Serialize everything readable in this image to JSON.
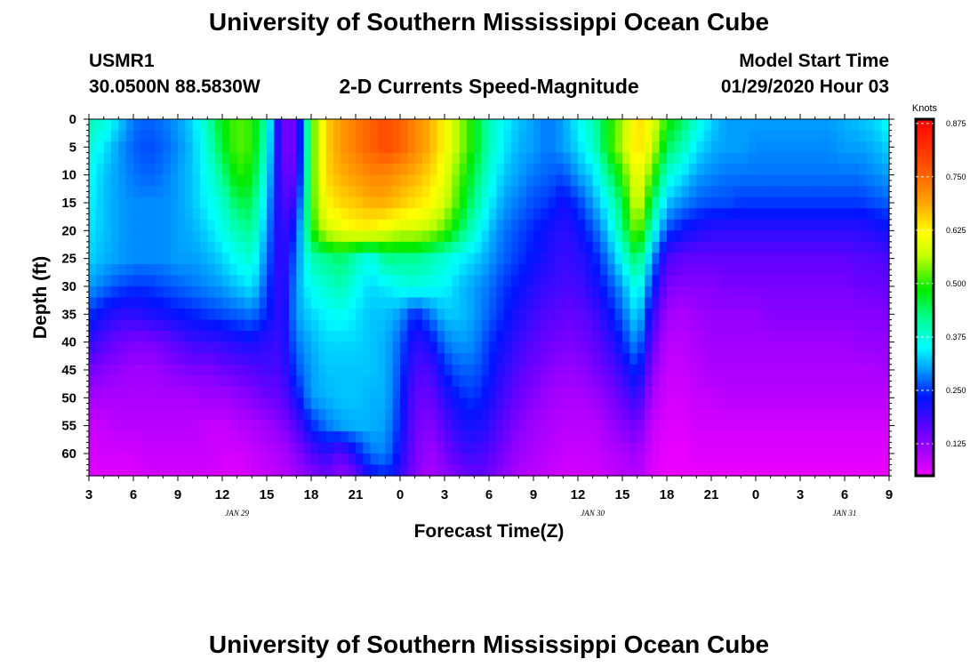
{
  "header": {
    "title": "University of Southern Mississippi Ocean Cube",
    "station": "USMR1",
    "coords": "30.0500N 88.5830W",
    "subtitle": "2-D Currents Speed-Magnitude",
    "model_label": "Model Start Time",
    "model_time": "01/29/2020 Hour 03"
  },
  "footer": {
    "title": "University of Southern Mississippi Ocean Cube"
  },
  "chart_data": {
    "type": "heatmap",
    "title": "2-D Currents Speed-Magnitude",
    "xlabel": "Forecast Time(Z)",
    "ylabel": "Depth (ft)",
    "colorbar_label": "Knots",
    "x_ticks": [
      "3",
      "6",
      "9",
      "12",
      "15",
      "18",
      "21",
      "0",
      "3",
      "6",
      "9",
      "12",
      "15",
      "18",
      "21",
      "0",
      "3",
      "6",
      "9"
    ],
    "date_labels": [
      {
        "text": "JAN 29",
        "x_hours": 13
      },
      {
        "text": "JAN 30",
        "x_hours": 37
      },
      {
        "text": "JAN 31",
        "x_hours": 54
      }
    ],
    "y_ticks": [
      0,
      5,
      10,
      15,
      20,
      25,
      30,
      35,
      40,
      45,
      50,
      55,
      60
    ],
    "x_range_hours": [
      3,
      57
    ],
    "depth_range_ft": [
      0,
      64
    ],
    "colorbar_ticks": [
      "0.875",
      "0.750",
      "0.625",
      "0.500",
      "0.375",
      "0.250",
      "0.125"
    ],
    "colorbar_range": [
      0.05,
      0.885
    ],
    "columns_hours": [
      3,
      4,
      5,
      6,
      7,
      8,
      9,
      10,
      11,
      12,
      13,
      14,
      15,
      16,
      17,
      18,
      19,
      20,
      21,
      22,
      23,
      24,
      25,
      26,
      27,
      28,
      29,
      30,
      31,
      32,
      33,
      34,
      35,
      36,
      37,
      38,
      39,
      40,
      41,
      42,
      43,
      44,
      45,
      46,
      47,
      48,
      49,
      50,
      51,
      52,
      53,
      54,
      55,
      56,
      57
    ],
    "rows_depth_ft": [
      0,
      5,
      10,
      15,
      20,
      25,
      30,
      35,
      40,
      45,
      50,
      55,
      60,
      64
    ],
    "speed_knots": [
      [
        0.4,
        0.38,
        0.33,
        0.28,
        0.27,
        0.28,
        0.3,
        0.33,
        0.4,
        0.48,
        0.52,
        0.5,
        0.4,
        0.15,
        0.15,
        0.5,
        0.65,
        0.7,
        0.73,
        0.76,
        0.78,
        0.76,
        0.72,
        0.68,
        0.62,
        0.55,
        0.48,
        0.4,
        0.35,
        0.32,
        0.3,
        0.28,
        0.3,
        0.35,
        0.4,
        0.48,
        0.55,
        0.65,
        0.6,
        0.5,
        0.45,
        0.38,
        0.33,
        0.3,
        0.3,
        0.3,
        0.3,
        0.3,
        0.3,
        0.3,
        0.3,
        0.31,
        0.32,
        0.33,
        0.36
      ],
      [
        0.38,
        0.34,
        0.3,
        0.27,
        0.26,
        0.27,
        0.29,
        0.32,
        0.38,
        0.46,
        0.52,
        0.5,
        0.38,
        0.15,
        0.15,
        0.5,
        0.65,
        0.7,
        0.73,
        0.76,
        0.78,
        0.76,
        0.72,
        0.68,
        0.62,
        0.55,
        0.48,
        0.4,
        0.34,
        0.31,
        0.3,
        0.28,
        0.3,
        0.33,
        0.38,
        0.48,
        0.56,
        0.65,
        0.58,
        0.45,
        0.4,
        0.34,
        0.31,
        0.3,
        0.3,
        0.29,
        0.29,
        0.29,
        0.29,
        0.29,
        0.29,
        0.3,
        0.3,
        0.31,
        0.33
      ],
      [
        0.36,
        0.32,
        0.3,
        0.28,
        0.27,
        0.28,
        0.3,
        0.32,
        0.36,
        0.42,
        0.5,
        0.48,
        0.35,
        0.16,
        0.16,
        0.5,
        0.65,
        0.68,
        0.7,
        0.72,
        0.72,
        0.7,
        0.68,
        0.65,
        0.6,
        0.52,
        0.45,
        0.38,
        0.32,
        0.3,
        0.28,
        0.27,
        0.26,
        0.3,
        0.33,
        0.42,
        0.5,
        0.62,
        0.52,
        0.38,
        0.34,
        0.3,
        0.29,
        0.28,
        0.28,
        0.28,
        0.28,
        0.28,
        0.28,
        0.28,
        0.28,
        0.28,
        0.28,
        0.29,
        0.3
      ],
      [
        0.35,
        0.32,
        0.3,
        0.29,
        0.29,
        0.29,
        0.3,
        0.32,
        0.35,
        0.38,
        0.45,
        0.45,
        0.32,
        0.17,
        0.2,
        0.5,
        0.62,
        0.65,
        0.66,
        0.68,
        0.68,
        0.66,
        0.64,
        0.62,
        0.58,
        0.5,
        0.42,
        0.35,
        0.3,
        0.28,
        0.26,
        0.25,
        0.22,
        0.25,
        0.3,
        0.36,
        0.45,
        0.6,
        0.45,
        0.32,
        0.29,
        0.27,
        0.26,
        0.26,
        0.25,
        0.25,
        0.25,
        0.25,
        0.25,
        0.25,
        0.25,
        0.25,
        0.25,
        0.26,
        0.27
      ],
      [
        0.34,
        0.32,
        0.3,
        0.29,
        0.29,
        0.29,
        0.3,
        0.31,
        0.33,
        0.36,
        0.4,
        0.42,
        0.3,
        0.18,
        0.25,
        0.48,
        0.58,
        0.6,
        0.62,
        0.62,
        0.6,
        0.58,
        0.58,
        0.56,
        0.52,
        0.45,
        0.38,
        0.32,
        0.28,
        0.26,
        0.24,
        0.22,
        0.2,
        0.22,
        0.26,
        0.32,
        0.42,
        0.55,
        0.38,
        0.26,
        0.23,
        0.21,
        0.2,
        0.2,
        0.2,
        0.2,
        0.2,
        0.2,
        0.2,
        0.2,
        0.2,
        0.2,
        0.2,
        0.21,
        0.22
      ],
      [
        0.33,
        0.31,
        0.3,
        0.29,
        0.29,
        0.29,
        0.3,
        0.3,
        0.31,
        0.33,
        0.36,
        0.38,
        0.28,
        0.18,
        0.28,
        0.4,
        0.42,
        0.44,
        0.4,
        0.36,
        0.42,
        0.42,
        0.42,
        0.4,
        0.38,
        0.35,
        0.33,
        0.3,
        0.27,
        0.25,
        0.23,
        0.21,
        0.19,
        0.2,
        0.23,
        0.28,
        0.36,
        0.45,
        0.3,
        0.18,
        0.16,
        0.16,
        0.16,
        0.16,
        0.16,
        0.16,
        0.16,
        0.16,
        0.16,
        0.16,
        0.16,
        0.16,
        0.17,
        0.17,
        0.18
      ],
      [
        0.3,
        0.28,
        0.26,
        0.25,
        0.25,
        0.26,
        0.27,
        0.28,
        0.29,
        0.3,
        0.32,
        0.34,
        0.26,
        0.18,
        0.3,
        0.36,
        0.38,
        0.4,
        0.36,
        0.33,
        0.34,
        0.36,
        0.37,
        0.36,
        0.35,
        0.32,
        0.3,
        0.28,
        0.25,
        0.23,
        0.21,
        0.19,
        0.18,
        0.18,
        0.21,
        0.25,
        0.3,
        0.38,
        0.25,
        0.14,
        0.13,
        0.13,
        0.13,
        0.14,
        0.14,
        0.14,
        0.14,
        0.14,
        0.14,
        0.14,
        0.14,
        0.14,
        0.15,
        0.15,
        0.16
      ],
      [
        0.25,
        0.22,
        0.2,
        0.2,
        0.21,
        0.22,
        0.23,
        0.24,
        0.25,
        0.26,
        0.27,
        0.28,
        0.24,
        0.19,
        0.3,
        0.33,
        0.35,
        0.36,
        0.34,
        0.32,
        0.32,
        0.3,
        0.24,
        0.28,
        0.32,
        0.32,
        0.3,
        0.27,
        0.24,
        0.21,
        0.19,
        0.17,
        0.16,
        0.16,
        0.18,
        0.22,
        0.27,
        0.34,
        0.2,
        0.11,
        0.1,
        0.11,
        0.12,
        0.12,
        0.12,
        0.12,
        0.13,
        0.13,
        0.13,
        0.13,
        0.13,
        0.13,
        0.13,
        0.13,
        0.14
      ],
      [
        0.2,
        0.17,
        0.15,
        0.14,
        0.14,
        0.15,
        0.17,
        0.19,
        0.19,
        0.2,
        0.21,
        0.22,
        0.2,
        0.19,
        0.28,
        0.31,
        0.33,
        0.33,
        0.33,
        0.32,
        0.31,
        0.27,
        0.2,
        0.22,
        0.28,
        0.3,
        0.29,
        0.25,
        0.22,
        0.19,
        0.17,
        0.15,
        0.14,
        0.14,
        0.16,
        0.19,
        0.24,
        0.3,
        0.16,
        0.09,
        0.09,
        0.1,
        0.11,
        0.11,
        0.11,
        0.11,
        0.11,
        0.11,
        0.11,
        0.11,
        0.11,
        0.11,
        0.12,
        0.12,
        0.12
      ],
      [
        0.15,
        0.13,
        0.12,
        0.11,
        0.11,
        0.12,
        0.13,
        0.14,
        0.14,
        0.15,
        0.16,
        0.17,
        0.18,
        0.18,
        0.26,
        0.3,
        0.32,
        0.32,
        0.32,
        0.32,
        0.31,
        0.26,
        0.18,
        0.18,
        0.24,
        0.27,
        0.27,
        0.24,
        0.2,
        0.17,
        0.15,
        0.13,
        0.12,
        0.12,
        0.14,
        0.16,
        0.2,
        0.25,
        0.13,
        0.08,
        0.08,
        0.09,
        0.1,
        0.1,
        0.1,
        0.1,
        0.1,
        0.1,
        0.1,
        0.1,
        0.1,
        0.1,
        0.1,
        0.1,
        0.11
      ],
      [
        0.11,
        0.1,
        0.1,
        0.1,
        0.1,
        0.1,
        0.1,
        0.1,
        0.11,
        0.11,
        0.12,
        0.13,
        0.15,
        0.16,
        0.22,
        0.3,
        0.31,
        0.32,
        0.32,
        0.31,
        0.31,
        0.25,
        0.16,
        0.15,
        0.2,
        0.24,
        0.25,
        0.22,
        0.18,
        0.15,
        0.13,
        0.11,
        0.1,
        0.1,
        0.11,
        0.13,
        0.16,
        0.2,
        0.1,
        0.07,
        0.07,
        0.08,
        0.08,
        0.09,
        0.09,
        0.09,
        0.09,
        0.09,
        0.09,
        0.09,
        0.09,
        0.09,
        0.09,
        0.09,
        0.09
      ],
      [
        0.08,
        0.08,
        0.09,
        0.09,
        0.09,
        0.09,
        0.09,
        0.09,
        0.08,
        0.08,
        0.09,
        0.1,
        0.11,
        0.13,
        0.17,
        0.24,
        0.28,
        0.3,
        0.31,
        0.31,
        0.3,
        0.24,
        0.15,
        0.13,
        0.17,
        0.21,
        0.22,
        0.2,
        0.16,
        0.13,
        0.11,
        0.1,
        0.09,
        0.09,
        0.09,
        0.11,
        0.13,
        0.15,
        0.08,
        0.06,
        0.06,
        0.07,
        0.07,
        0.07,
        0.07,
        0.07,
        0.07,
        0.07,
        0.07,
        0.07,
        0.07,
        0.07,
        0.07,
        0.07,
        0.07
      ],
      [
        0.07,
        0.07,
        0.07,
        0.07,
        0.08,
        0.08,
        0.08,
        0.08,
        0.08,
        0.07,
        0.07,
        0.08,
        0.09,
        0.1,
        0.13,
        0.17,
        0.2,
        0.16,
        0.22,
        0.28,
        0.29,
        0.22,
        0.14,
        0.11,
        0.14,
        0.18,
        0.19,
        0.17,
        0.14,
        0.11,
        0.1,
        0.09,
        0.08,
        0.08,
        0.08,
        0.09,
        0.1,
        0.11,
        0.07,
        0.05,
        0.05,
        0.06,
        0.06,
        0.06,
        0.06,
        0.06,
        0.06,
        0.06,
        0.06,
        0.06,
        0.06,
        0.06,
        0.06,
        0.06,
        0.06
      ],
      [
        0.06,
        0.06,
        0.06,
        0.06,
        0.07,
        0.07,
        0.07,
        0.07,
        0.07,
        0.06,
        0.06,
        0.07,
        0.08,
        0.09,
        0.11,
        0.13,
        0.15,
        0.12,
        0.15,
        0.22,
        0.24,
        0.2,
        0.13,
        0.1,
        0.12,
        0.14,
        0.16,
        0.15,
        0.12,
        0.1,
        0.09,
        0.08,
        0.07,
        0.07,
        0.07,
        0.08,
        0.09,
        0.1,
        0.06,
        0.05,
        0.05,
        0.05,
        0.05,
        0.05,
        0.05,
        0.05,
        0.05,
        0.05,
        0.05,
        0.05,
        0.05,
        0.05,
        0.05,
        0.05,
        0.05
      ]
    ]
  }
}
